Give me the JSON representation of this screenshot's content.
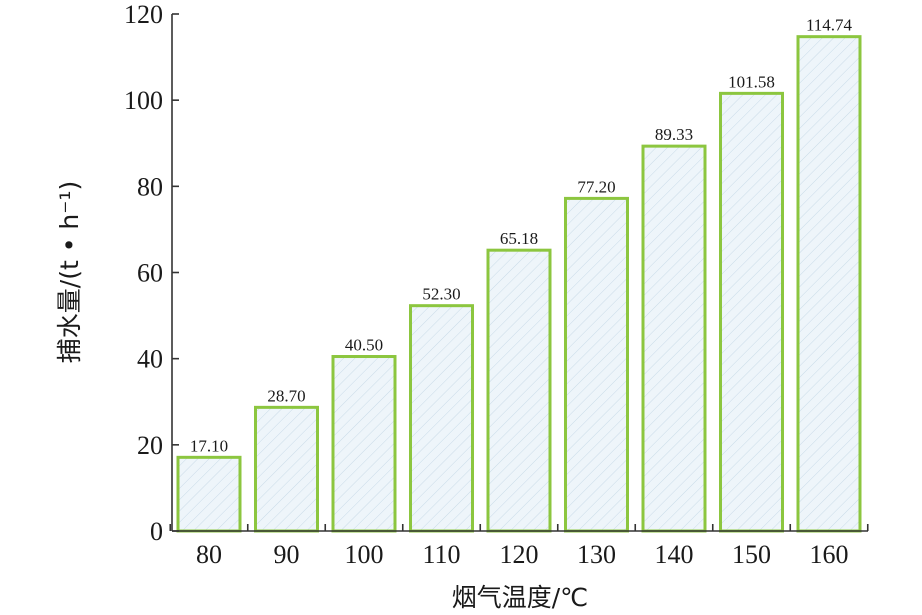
{
  "chart_data": {
    "type": "bar",
    "categories": [
      "80",
      "90",
      "100",
      "110",
      "120",
      "130",
      "140",
      "150",
      "160"
    ],
    "values": [
      17.1,
      28.7,
      40.5,
      52.3,
      65.18,
      77.2,
      89.33,
      101.58,
      114.74
    ],
    "value_labels": [
      "17.10",
      "28.70",
      "40.50",
      "52.30",
      "65.18",
      "77.20",
      "89.33",
      "101.58",
      "114.74"
    ],
    "title": "",
    "xlabel": "烟气温度/℃",
    "ylabel": "捕水量/(t • h⁻¹)",
    "ylim": [
      0,
      120
    ],
    "yticks": [
      "0",
      "20",
      "40",
      "60",
      "80",
      "100",
      "120"
    ],
    "grid": false,
    "legend": "none",
    "colors": {
      "bar_edge": "#8cc63f",
      "bar_fill": "#eef5fa",
      "hatch": "#c9dbe8",
      "axis": "#333333"
    }
  }
}
